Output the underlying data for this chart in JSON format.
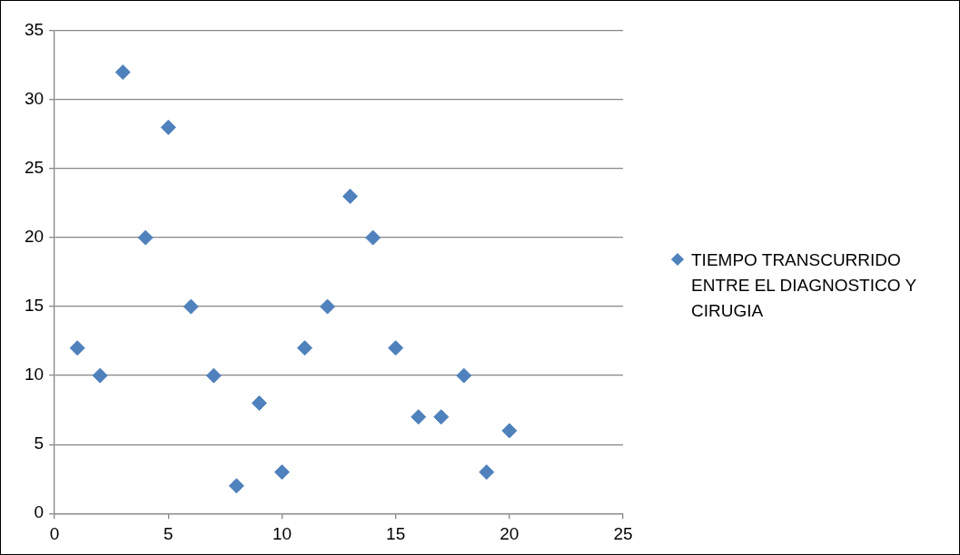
{
  "chart_data": {
    "type": "scatter",
    "x": [
      1,
      2,
      3,
      4,
      5,
      6,
      7,
      8,
      9,
      10,
      11,
      12,
      13,
      14,
      15,
      16,
      17,
      18,
      19,
      20
    ],
    "series": [
      {
        "name": "TIEMPO TRANSCURRIDO ENTRE EL DIAGNOSTICO Y CIRUGIA",
        "color": "#4f81bd",
        "values": [
          12,
          10,
          32,
          20,
          28,
          15,
          10,
          2,
          8,
          3,
          12,
          15,
          23,
          20,
          12,
          7,
          7,
          10,
          3,
          6
        ]
      }
    ],
    "xlim": [
      0,
      25
    ],
    "xticks": [
      0,
      5,
      10,
      15,
      20,
      25
    ],
    "ylim": [
      0,
      35
    ],
    "yticks": [
      0,
      5,
      10,
      15,
      20,
      25,
      30,
      35
    ],
    "grid": "y",
    "legend": "right",
    "marker": "diamond"
  }
}
